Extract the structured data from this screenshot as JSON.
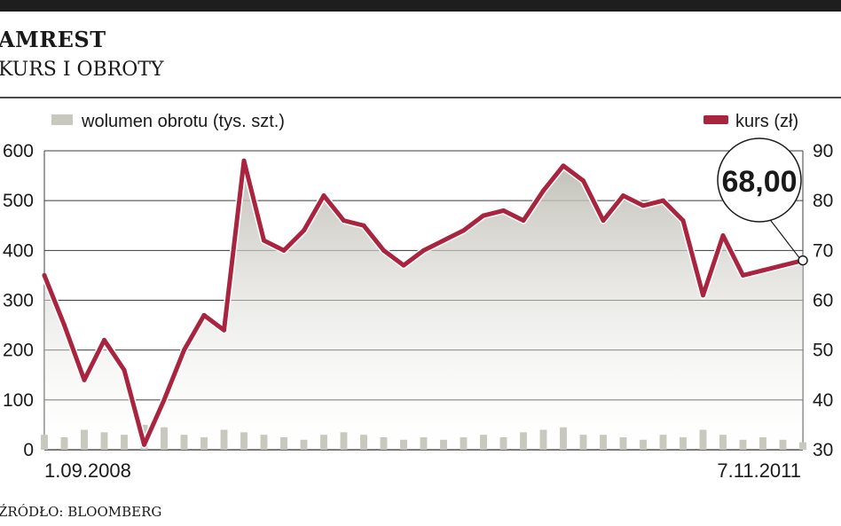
{
  "header": {
    "title": "AMREST",
    "subtitle": "KURS I OBROTY"
  },
  "footer": {
    "source": "ŹRÓDŁO: BLOOMBERG"
  },
  "chart_data": {
    "type": "line",
    "title": "AMREST",
    "subtitle": "KURS I OBROTY",
    "legend": [
      {
        "name": "wolumen obrotu (tys. szt.)",
        "color": "#c9c8bf",
        "kind": "area/bar",
        "axis": "left"
      },
      {
        "name": "kurs (zł)",
        "color": "#a8243f",
        "kind": "line",
        "axis": "right"
      }
    ],
    "legend_placement": "top",
    "grid": true,
    "x_start_label": "1.09.2008",
    "x_end_label": "7.11.2011",
    "y_left": {
      "ticks": [
        "600",
        "500",
        "400",
        "300",
        "200",
        "100",
        "0"
      ],
      "range": [
        0,
        600
      ]
    },
    "y_right": {
      "ticks": [
        "90",
        "80",
        "70",
        "60",
        "50",
        "40",
        "30"
      ],
      "range": [
        30,
        90
      ]
    },
    "callout": {
      "text": "68,00",
      "value": 68.0
    },
    "series": [
      {
        "name": "kurs (zł)",
        "x": [
          "2008-09",
          "2008-10",
          "2008-11",
          "2008-12",
          "2009-01",
          "2009-02",
          "2009-03",
          "2009-04",
          "2009-05",
          "2009-06",
          "2009-07",
          "2009-08",
          "2009-09",
          "2009-10",
          "2009-11",
          "2009-12",
          "2010-01",
          "2010-02",
          "2010-03",
          "2010-04",
          "2010-05",
          "2010-06",
          "2010-07",
          "2010-08",
          "2010-09",
          "2010-10",
          "2010-11",
          "2010-12",
          "2011-01",
          "2011-02",
          "2011-03",
          "2011-04",
          "2011-05",
          "2011-06",
          "2011-07",
          "2011-08",
          "2011-09",
          "2011-10",
          "2011-11"
        ],
        "values": [
          65,
          55,
          44,
          52,
          46,
          31,
          40,
          50,
          57,
          54,
          88,
          72,
          70,
          74,
          81,
          76,
          75,
          70,
          67,
          70,
          72,
          74,
          77,
          78,
          76,
          82,
          87,
          84,
          76,
          81,
          79,
          80,
          76,
          61,
          73,
          65,
          66,
          67,
          68
        ]
      },
      {
        "name": "wolumen obrotu (tys. szt.)",
        "x": [
          "2008-09",
          "2008-10",
          "2008-11",
          "2008-12",
          "2009-01",
          "2009-02",
          "2009-03",
          "2009-04",
          "2009-05",
          "2009-06",
          "2009-07",
          "2009-08",
          "2009-09",
          "2009-10",
          "2009-11",
          "2009-12",
          "2010-01",
          "2010-02",
          "2010-03",
          "2010-04",
          "2010-05",
          "2010-06",
          "2010-07",
          "2010-08",
          "2010-09",
          "2010-10",
          "2010-11",
          "2010-12",
          "2011-01",
          "2011-02",
          "2011-03",
          "2011-04",
          "2011-05",
          "2011-06",
          "2011-07",
          "2011-08",
          "2011-09",
          "2011-10",
          "2011-11"
        ],
        "values": [
          30,
          25,
          40,
          35,
          30,
          50,
          45,
          30,
          25,
          40,
          35,
          30,
          25,
          20,
          30,
          35,
          30,
          25,
          20,
          25,
          20,
          25,
          30,
          25,
          35,
          40,
          45,
          30,
          30,
          25,
          20,
          30,
          25,
          40,
          30,
          20,
          25,
          20,
          15
        ]
      }
    ]
  }
}
